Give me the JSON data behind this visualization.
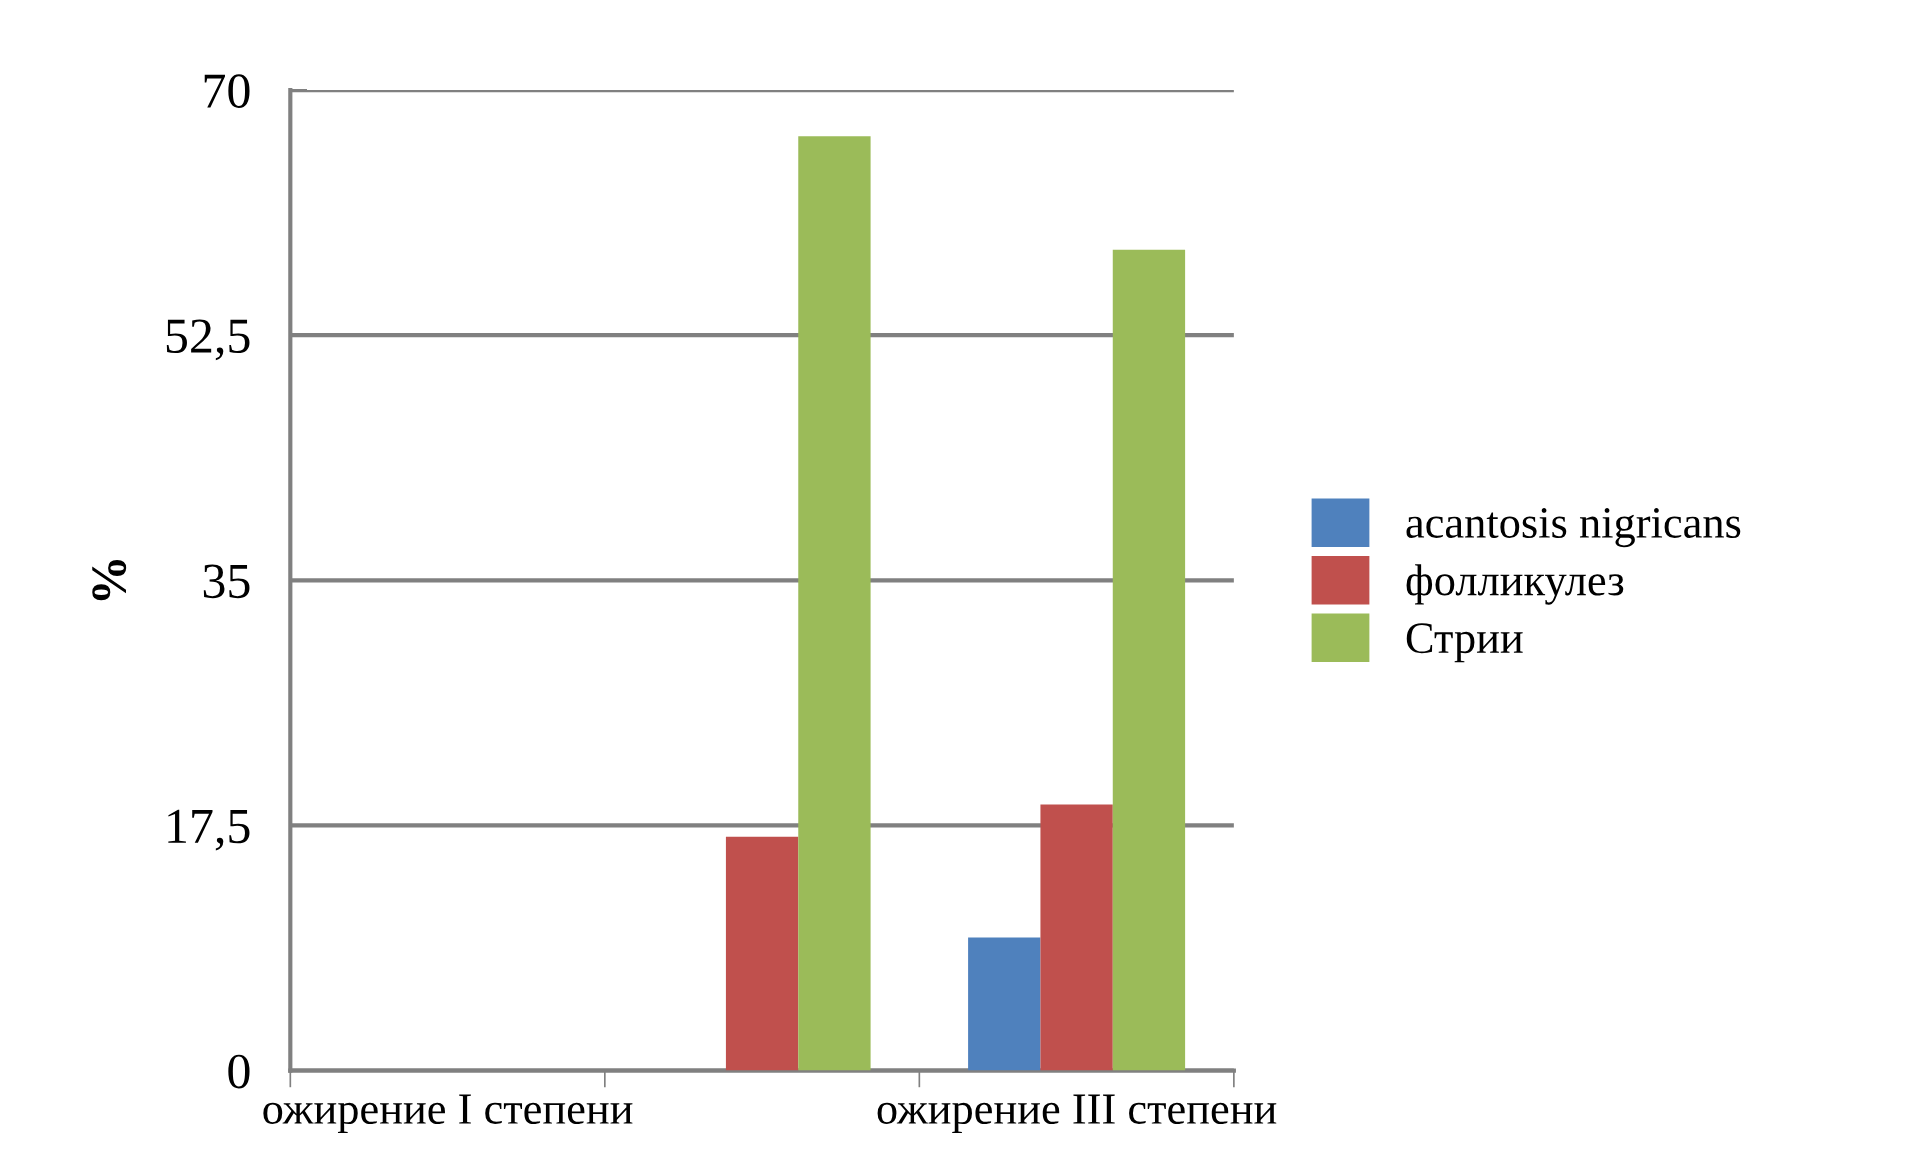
{
  "chart_data": {
    "type": "bar",
    "ylabel": "%",
    "categories": [
      "ожирение I степени",
      null,
      "ожирение III степени"
    ],
    "series": [
      {
        "name": "acantosis nigricans",
        "color": "#4f81bd",
        "values": [
          0,
          0,
          9.5
        ]
      },
      {
        "name": "фолликулез",
        "color": "#c0504d",
        "values": [
          0,
          16.7,
          19.0
        ]
      },
      {
        "name": "Стрии",
        "color": "#9bbb59",
        "values": [
          0,
          66.7,
          58.6
        ]
      }
    ],
    "ylim": [
      0,
      70
    ],
    "yticks": [
      0,
      {
        "value": 17.5,
        "label": "17,5"
      },
      35,
      {
        "value": 52.5,
        "label": "52,5"
      },
      70
    ],
    "grid": "y",
    "legend": "right"
  }
}
